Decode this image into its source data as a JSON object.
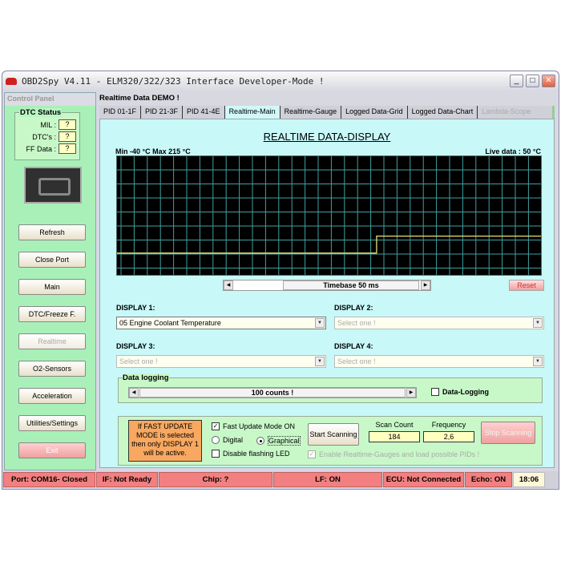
{
  "window": {
    "title": "OBD2Spy V4.11 - ELM320/322/323 Interface Developer-Mode !",
    "minimize": "_",
    "maximize": "□",
    "close": "✕"
  },
  "left": {
    "header": "Control Panel",
    "dtc": {
      "title": "DTC Status",
      "mil_label": "MIL :",
      "mil": "?",
      "dtcs_label": "DTC's :",
      "dtcs": "?",
      "ff_label": "FF Data :",
      "ff": "?"
    },
    "buttons": [
      "Refresh",
      "Close Port",
      "Main",
      "DTC/Freeze F.",
      "Realtime",
      "O2-Sensors",
      "Acceleration",
      "Utilities/Settings",
      "Exit"
    ]
  },
  "main": {
    "header": "Realtime Data DEMO !",
    "tabs": [
      "PID 01-1F",
      "PID 21-3F",
      "PID 41-4E",
      "Realtime-Main",
      "Realtime-Gauge",
      "Logged Data-Grid",
      "Logged Data-Chart",
      "Lambda-Scope"
    ],
    "active_tab": "Realtime-Main",
    "display_title": "REALTIME DATA-DISPLAY",
    "range_label": "Min -40 °C Max 215 °C",
    "live_label": "Live data : 50 °C",
    "timebase": "Timebase 50 ms",
    "reset": "Reset",
    "display1_label": "DISPLAY 1:",
    "display1": "05 Engine Coolant Temperature",
    "display2_label": "DISPLAY 2:",
    "display2": "Select one !",
    "display3_label": "DISPLAY 3:",
    "display3": "Select one !",
    "display4_label": "DISPLAY 4:",
    "display4": "Select one !",
    "logging": {
      "title": "Data logging",
      "counts": "100 counts !",
      "checkbox": "Data-Logging",
      "checked": false
    },
    "scan": {
      "note": "If FAST UPDATE MODE is selected then only DISPLAY 1 will be active.",
      "fast_mode": "Fast Update Mode ON",
      "fast_checked": true,
      "digital": "Digital",
      "graphical": "Graphical",
      "mode": "Graphical",
      "disable_led": "Disable flashing LED",
      "start": "Start Scanning",
      "stop": "Stop Scanning",
      "scan_count_label": "Scan Count",
      "scan_count": "184",
      "frequency_label": "Frequency",
      "frequency": "2,6",
      "enable_gauges": "Enable Realtime-Gauges and load possible PIDs !"
    }
  },
  "status": {
    "port": "Port: COM16- Closed",
    "if": "IF: Not Ready",
    "chip": "Chip: ?",
    "lf": "LF: ON",
    "ecu": "ECU: Not Connected",
    "echo": "Echo: ON",
    "time": "18:06"
  },
  "chart_data": {
    "type": "line",
    "ylim": [
      -40,
      215
    ],
    "unit": "°C",
    "series": [
      {
        "values": [
          5,
          5,
          5,
          5,
          5,
          5,
          50,
          50,
          50,
          50
        ]
      }
    ],
    "step_at_fraction": 0.61,
    "colors": {
      "line": "#e8e070",
      "grid": "#40a0a0",
      "background": "#000000"
    }
  }
}
